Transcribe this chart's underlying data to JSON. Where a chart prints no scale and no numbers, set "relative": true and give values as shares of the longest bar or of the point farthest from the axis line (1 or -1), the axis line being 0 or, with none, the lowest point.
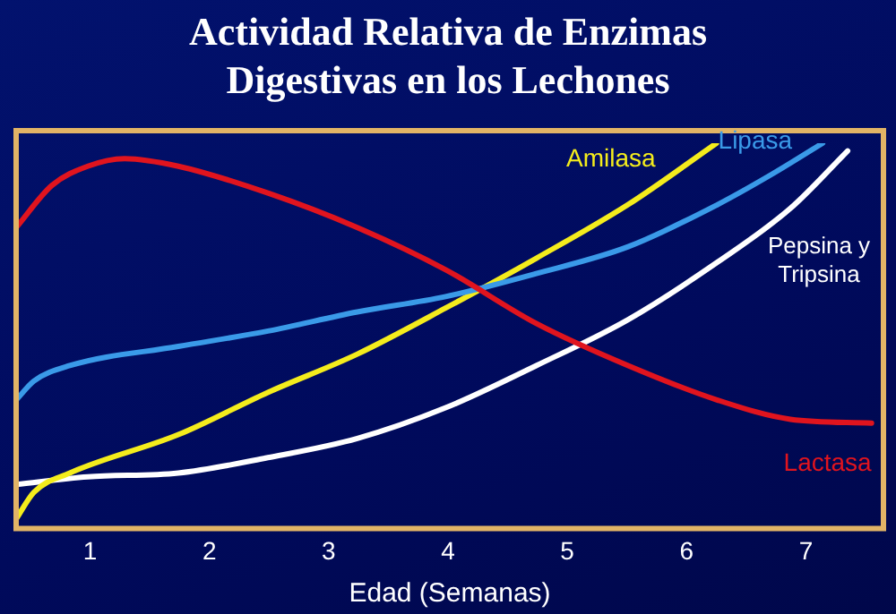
{
  "chart_data": {
    "type": "line",
    "title": "Actividad Relativa de Enzimas Digestivas en los Lechones",
    "xlabel": "Edad (Semanas)",
    "relative": true,
    "xlim": [
      0.38,
      7.65
    ],
    "xticks": [
      1,
      2,
      3,
      4,
      5,
      6,
      7
    ],
    "grid": false,
    "legend": false,
    "marker": "none",
    "line_style": "solid",
    "series": [
      {
        "name": "Lactasa",
        "color": "#e0141e",
        "x": [
          0.38,
          0.68,
          0.98,
          1.29,
          1.74,
          2.49,
          3.24,
          3.98,
          4.74,
          5.51,
          6.26,
          6.87,
          7.55
        ],
        "values": [
          0.78,
          0.89,
          0.94,
          0.96,
          0.94,
          0.87,
          0.78,
          0.67,
          0.53,
          0.42,
          0.33,
          0.28,
          0.27
        ]
      },
      {
        "name": "Lipasa",
        "color": "#3a9ae8",
        "x": [
          0.38,
          0.53,
          0.83,
          1.74,
          2.49,
          3.24,
          3.98,
          4.74,
          5.51,
          6.26,
          6.72,
          7.14
        ],
        "values": [
          0.33,
          0.38,
          0.42,
          0.47,
          0.51,
          0.56,
          0.6,
          0.66,
          0.73,
          0.84,
          0.92,
          1
        ]
      },
      {
        "name": "Amilasa",
        "color": "#f4ec1c",
        "x": [
          0.38,
          0.53,
          0.83,
          1.74,
          2.49,
          3.24,
          3.98,
          4.74,
          5.51,
          6.25
        ],
        "values": [
          0.02,
          0.09,
          0.14,
          0.24,
          0.35,
          0.45,
          0.57,
          0.7,
          0.84,
          1
        ]
      },
      {
        "name": "Pepsina y Tripsina",
        "color": "#ffffff",
        "x": [
          0.38,
          0.98,
          1.74,
          2.49,
          3.24,
          3.98,
          4.74,
          5.51,
          6.26,
          6.87,
          7.35
        ],
        "values": [
          0.11,
          0.13,
          0.14,
          0.18,
          0.23,
          0.31,
          0.42,
          0.54,
          0.69,
          0.83,
          0.98
        ]
      }
    ]
  }
}
